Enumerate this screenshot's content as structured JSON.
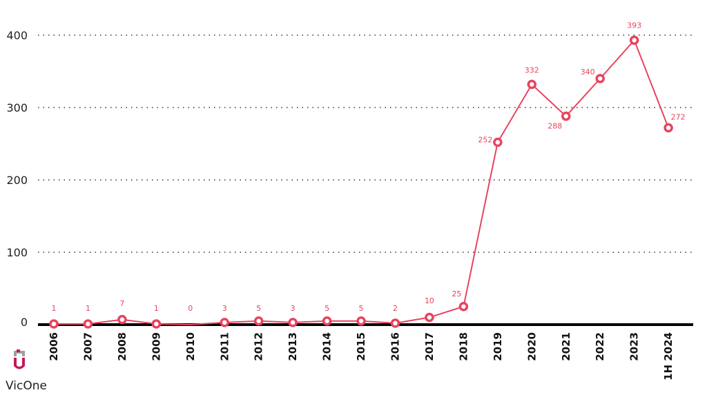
{
  "brand": {
    "name": "VicOne",
    "accent": "#c2185b"
  },
  "colors": {
    "series": "#e8435f",
    "grid": "#333333",
    "baseline": "#000000"
  },
  "chart_data": {
    "type": "line",
    "title": "",
    "xlabel": "",
    "ylabel": "",
    "categories": [
      "2006",
      "2007",
      "2008",
      "2009",
      "2010",
      "2011",
      "2012",
      "2013",
      "2014",
      "2015",
      "2016",
      "2017",
      "2018",
      "2019",
      "2020",
      "2021",
      "2022",
      "2023",
      "1H 2024"
    ],
    "values": [
      1,
      1,
      7,
      1,
      0,
      3,
      5,
      3,
      5,
      5,
      2,
      10,
      25,
      252,
      332,
      288,
      340,
      393,
      272
    ],
    "data_labels": [
      "1",
      "1",
      "7",
      "1",
      "0",
      "3",
      "5",
      "3",
      "5",
      "5",
      "2",
      "10",
      "25",
      "252",
      "332",
      "288",
      "340",
      "393",
      "272"
    ],
    "yticks": [
      0,
      100,
      200,
      300,
      400
    ],
    "ylim": [
      0,
      400
    ],
    "grid": true,
    "legend": "none",
    "markers": "hollow-circle"
  }
}
